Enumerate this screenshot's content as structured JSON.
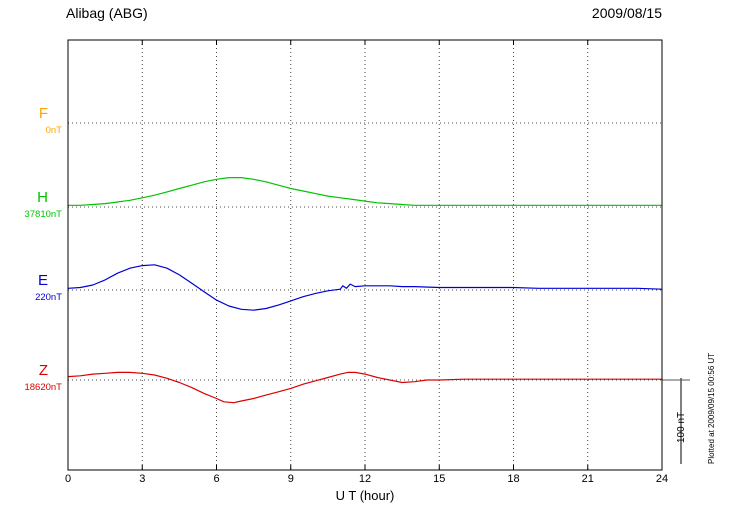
{
  "header": {
    "station": "Alibag (ABG)",
    "date": "2009/08/15"
  },
  "scale_bar": {
    "label": "100 nT",
    "value_nT": 100
  },
  "footer_note": "Plotted at 2009/09/15 00:56 UT",
  "chart_data": {
    "type": "line",
    "title": "Alibag (ABG) magnetogram 2009/08/15",
    "xlabel": "U T (hour)",
    "x_range": [
      0,
      24
    ],
    "x_ticks": [
      0,
      3,
      6,
      9,
      12,
      15,
      18,
      21,
      24
    ],
    "grid": "dotted vertical lines at each x tick; dotted horizontal line at each component baseline",
    "legend_position": "left margin, one colored label per trace",
    "units": "points are [hour UT, nT offset from component baseline]",
    "scale_reference": {
      "label": "100 nT",
      "nT": 100
    },
    "series": [
      {
        "name": "F",
        "label": "F",
        "baseline_label": "0nT",
        "baseline_nT": 0,
        "color": "#FFA500",
        "points": []
      },
      {
        "name": "H",
        "label": "H",
        "baseline_label": "37810nT",
        "baseline_nT": 37810,
        "color": "#00C400",
        "points": [
          [
            0,
            2
          ],
          [
            0.5,
            2
          ],
          [
            1,
            3
          ],
          [
            1.5,
            4
          ],
          [
            2,
            6
          ],
          [
            2.5,
            8
          ],
          [
            3,
            11
          ],
          [
            3.5,
            14
          ],
          [
            4,
            18
          ],
          [
            4.5,
            22
          ],
          [
            5,
            26
          ],
          [
            5.5,
            30
          ],
          [
            6,
            33
          ],
          [
            6.5,
            35
          ],
          [
            7,
            35
          ],
          [
            7.5,
            33
          ],
          [
            8,
            30
          ],
          [
            8.5,
            26
          ],
          [
            9,
            22
          ],
          [
            9.5,
            19
          ],
          [
            10,
            16
          ],
          [
            10.5,
            13
          ],
          [
            11,
            11
          ],
          [
            11.5,
            9
          ],
          [
            12,
            7
          ],
          [
            12.5,
            5
          ],
          [
            13,
            4
          ],
          [
            13.5,
            3
          ],
          [
            14,
            2
          ],
          [
            15,
            2
          ],
          [
            16,
            2
          ],
          [
            17,
            2
          ],
          [
            18,
            2
          ],
          [
            19,
            2
          ],
          [
            20,
            2
          ],
          [
            21,
            2
          ],
          [
            22,
            2
          ],
          [
            23,
            2
          ],
          [
            24,
            2
          ]
        ]
      },
      {
        "name": "E",
        "label": "E",
        "baseline_label": "220nT",
        "baseline_nT": 220,
        "color": "#0000D8",
        "points": [
          [
            0,
            2
          ],
          [
            0.5,
            3
          ],
          [
            1,
            6
          ],
          [
            1.5,
            12
          ],
          [
            2,
            20
          ],
          [
            2.5,
            26
          ],
          [
            3,
            29
          ],
          [
            3.5,
            30
          ],
          [
            4,
            26
          ],
          [
            4.5,
            18
          ],
          [
            5,
            8
          ],
          [
            5.5,
            -2
          ],
          [
            6,
            -12
          ],
          [
            6.5,
            -19
          ],
          [
            7,
            -23
          ],
          [
            7.5,
            -24
          ],
          [
            8,
            -22
          ],
          [
            8.5,
            -18
          ],
          [
            9,
            -13
          ],
          [
            9.5,
            -8
          ],
          [
            10,
            -4
          ],
          [
            10.5,
            -1
          ],
          [
            11,
            1
          ],
          [
            11.1,
            5
          ],
          [
            11.25,
            2
          ],
          [
            11.4,
            7
          ],
          [
            11.6,
            4
          ],
          [
            12,
            5
          ],
          [
            12.5,
            5
          ],
          [
            13,
            5
          ],
          [
            13.5,
            4
          ],
          [
            14,
            4
          ],
          [
            15,
            3
          ],
          [
            16,
            3
          ],
          [
            17,
            3
          ],
          [
            18,
            3
          ],
          [
            19,
            2
          ],
          [
            20,
            2
          ],
          [
            21,
            2
          ],
          [
            22,
            2
          ],
          [
            23,
            2
          ],
          [
            24,
            1
          ]
        ]
      },
      {
        "name": "Z",
        "label": "Z",
        "baseline_label": "18620nT",
        "baseline_nT": 18620,
        "color": "#DC0000",
        "points": [
          [
            0,
            4
          ],
          [
            0.5,
            5
          ],
          [
            1,
            7
          ],
          [
            1.5,
            8
          ],
          [
            2,
            9
          ],
          [
            2.5,
            9
          ],
          [
            3,
            8
          ],
          [
            3.5,
            6
          ],
          [
            4,
            2
          ],
          [
            4.5,
            -3
          ],
          [
            5,
            -9
          ],
          [
            5.5,
            -16
          ],
          [
            6,
            -22
          ],
          [
            6.3,
            -26
          ],
          [
            6.7,
            -27
          ],
          [
            7,
            -25
          ],
          [
            7.5,
            -22
          ],
          [
            8,
            -18
          ],
          [
            8.5,
            -14
          ],
          [
            9,
            -10
          ],
          [
            9.5,
            -5
          ],
          [
            10,
            -1
          ],
          [
            10.5,
            3
          ],
          [
            11,
            7
          ],
          [
            11.3,
            9
          ],
          [
            11.6,
            9
          ],
          [
            12,
            7
          ],
          [
            12.5,
            3
          ],
          [
            13,
            0
          ],
          [
            13.5,
            -3
          ],
          [
            14,
            -2
          ],
          [
            14.5,
            0
          ],
          [
            15,
            0
          ],
          [
            16,
            1
          ],
          [
            17,
            1
          ],
          [
            18,
            1
          ],
          [
            19,
            1
          ],
          [
            20,
            1
          ],
          [
            21,
            1
          ],
          [
            22,
            1
          ],
          [
            23,
            1
          ],
          [
            24,
            1
          ]
        ]
      }
    ]
  }
}
